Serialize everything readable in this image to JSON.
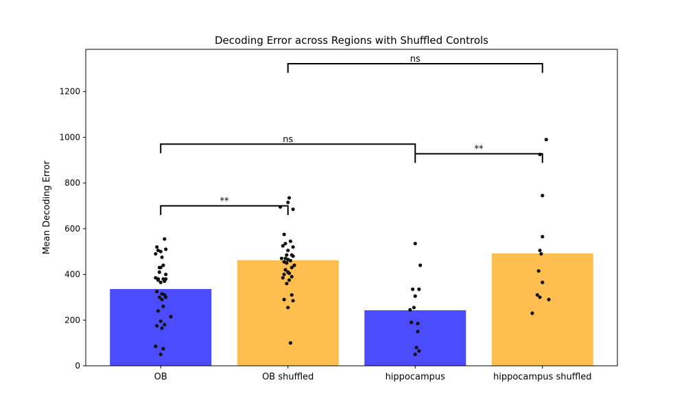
{
  "chart_data": {
    "type": "bar",
    "title": "Decoding Error across Regions with Shuffled Controls",
    "xlabel": "",
    "ylabel": "Mean Decoding Error",
    "ylim": [
      0,
      1385
    ],
    "yticks": [
      0,
      200,
      400,
      600,
      800,
      1000,
      1200
    ],
    "grid": false,
    "categories": [
      "OB",
      "OB shuffled",
      "hippocampus",
      "hippocampus shuffled"
    ],
    "values": [
      336,
      462,
      243,
      492
    ],
    "colors": [
      "#4c4cff",
      "#ffbf50",
      "#4c4cff",
      "#ffbf50"
    ],
    "point_color": "#111111",
    "points": [
      {
        "category": "OB",
        "offsets": [
          -0.04,
          0.0,
          0.04,
          -0.02,
          0.03,
          0.01,
          -0.03,
          0.02,
          0.0,
          -0.01,
          0.04,
          -0.04,
          0.02,
          -0.02,
          0.03,
          0.0,
          -0.03,
          0.01,
          0.04,
          -0.01,
          0.02,
          -0.02,
          0.08,
          0.0,
          0.03,
          -0.03,
          0.01,
          -0.04,
          0.02,
          0.0,
          -0.01,
          0.04,
          0.03,
          -0.02,
          0.01
        ],
        "values": [
          490,
          500,
          510,
          505,
          555,
          475,
          520,
          440,
          430,
          410,
          400,
          385,
          380,
          375,
          370,
          365,
          325,
          315,
          300,
          300,
          260,
          240,
          215,
          195,
          180,
          175,
          165,
          85,
          75,
          50,
          430,
          380,
          310,
          380,
          290
        ]
      },
      {
        "category": "OB shuffled",
        "offsets": [
          0.01,
          -0.06,
          0.04,
          0.0,
          -0.03,
          0.02,
          -0.04,
          -0.02,
          0.0,
          0.03,
          -0.01,
          0.04,
          -0.05,
          0.0,
          0.02,
          -0.03,
          -0.01,
          0.05,
          0.03,
          -0.02,
          0.0,
          0.01,
          -0.03,
          0.03,
          -0.04,
          0.01,
          -0.01,
          0.03,
          -0.03,
          0.04,
          0.0,
          0.02,
          -0.02,
          0.04
        ],
        "values": [
          735,
          695,
          685,
          715,
          575,
          545,
          525,
          535,
          505,
          485,
          485,
          480,
          470,
          465,
          460,
          455,
          450,
          440,
          430,
          420,
          410,
          405,
          400,
          390,
          385,
          375,
          360,
          310,
          290,
          285,
          255,
          100,
          470,
          520
        ]
      },
      {
        "category": "hippocampus",
        "offsets": [
          0.0,
          0.04,
          -0.02,
          0.03,
          0.0,
          -0.01,
          -0.04,
          -0.03,
          0.02,
          0.02,
          0.03,
          0.01,
          0.0
        ],
        "values": [
          535,
          440,
          335,
          335,
          305,
          255,
          245,
          190,
          185,
          150,
          65,
          80,
          50
        ]
      },
      {
        "category": "hippocampus shuffled",
        "offsets": [
          0.03,
          -0.02,
          0.0,
          0.0,
          -0.02,
          -0.01,
          -0.03,
          0.0,
          -0.04,
          -0.02,
          0.05,
          -0.08
        ],
        "values": [
          990,
          925,
          745,
          565,
          505,
          490,
          415,
          365,
          310,
          300,
          290,
          230
        ]
      }
    ],
    "brackets": [
      {
        "from": "OB",
        "to": "OB shuffled",
        "label": "**",
        "y": 700,
        "drop": 40
      },
      {
        "from": "OB",
        "to": "hippocampus",
        "label": "ns",
        "y": 970,
        "drop": 40
      },
      {
        "from": "hippocampus",
        "to": "hippocampus shuffled",
        "label": "**",
        "y": 928,
        "drop": 40
      },
      {
        "from": "OB shuffled",
        "to": "hippocampus shuffled",
        "label": "ns",
        "y": 1322,
        "drop": 40
      }
    ]
  }
}
